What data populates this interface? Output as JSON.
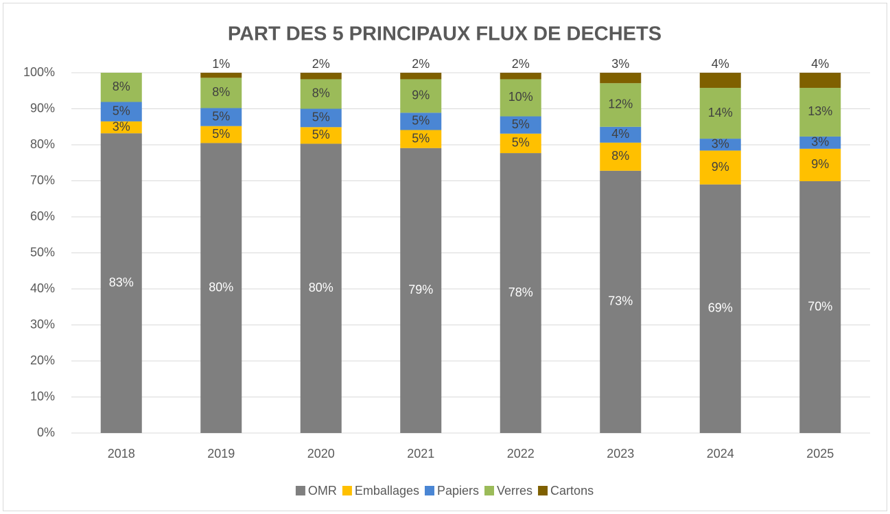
{
  "chart_data": {
    "type": "stacked_bar",
    "title": "PART DES 5 PRINCIPAUX FLUX DE DECHETS",
    "categories": [
      "2018",
      "2019",
      "2020",
      "2021",
      "2022",
      "2023",
      "2024",
      "2025"
    ],
    "series": [
      {
        "name": "OMR",
        "color": "#7f7f7f",
        "values": [
          83.2,
          80.5,
          80.3,
          79.1,
          77.7,
          72.8,
          69.0,
          69.9
        ],
        "value_labels": [
          "83%",
          "80%",
          "80%",
          "79%",
          "78%",
          "73%",
          "69%",
          "70%"
        ]
      },
      {
        "name": "Emballages",
        "color": "#ffc000",
        "values": [
          3.3,
          4.7,
          4.6,
          5.0,
          5.4,
          7.8,
          9.4,
          9.0
        ],
        "value_labels": [
          "3%",
          "5%",
          "5%",
          "5%",
          "5%",
          "8%",
          "9%",
          "9%"
        ]
      },
      {
        "name": "Papiers",
        "color": "#4a86d4",
        "values": [
          5.4,
          5.0,
          5.1,
          4.8,
          4.8,
          4.4,
          3.3,
          3.4
        ],
        "value_labels": [
          "5%",
          "5%",
          "5%",
          "5%",
          "5%",
          "4%",
          "3%",
          "3%"
        ]
      },
      {
        "name": "Verres",
        "color": "#9bbb59",
        "values": [
          8.1,
          8.4,
          8.2,
          9.3,
          10.3,
          12.1,
          14.1,
          13.5
        ],
        "value_labels": [
          "8%",
          "8%",
          "8%",
          "9%",
          "10%",
          "12%",
          "14%",
          "13%"
        ]
      },
      {
        "name": "Cartons",
        "color": "#7f6000",
        "values": [
          0,
          1.4,
          1.8,
          1.8,
          1.8,
          2.9,
          4.2,
          4.2
        ],
        "value_labels": [
          null,
          "1%",
          "2%",
          "2%",
          "2%",
          "3%",
          "4%",
          "4%"
        ]
      }
    ],
    "ylim": [
      0,
      100
    ],
    "yticks": [
      {
        "value": 0,
        "label": "0%"
      },
      {
        "value": 10,
        "label": "10%"
      },
      {
        "value": 20,
        "label": "20%"
      },
      {
        "value": 30,
        "label": "30%"
      },
      {
        "value": 40,
        "label": "40%"
      },
      {
        "value": 50,
        "label": "50%"
      },
      {
        "value": 60,
        "label": "60%"
      },
      {
        "value": 70,
        "label": "70%"
      },
      {
        "value": 80,
        "label": "80%"
      },
      {
        "value": 90,
        "label": "90%"
      },
      {
        "value": 100,
        "label": "100%"
      }
    ],
    "grid": true,
    "legend": "bottom"
  }
}
